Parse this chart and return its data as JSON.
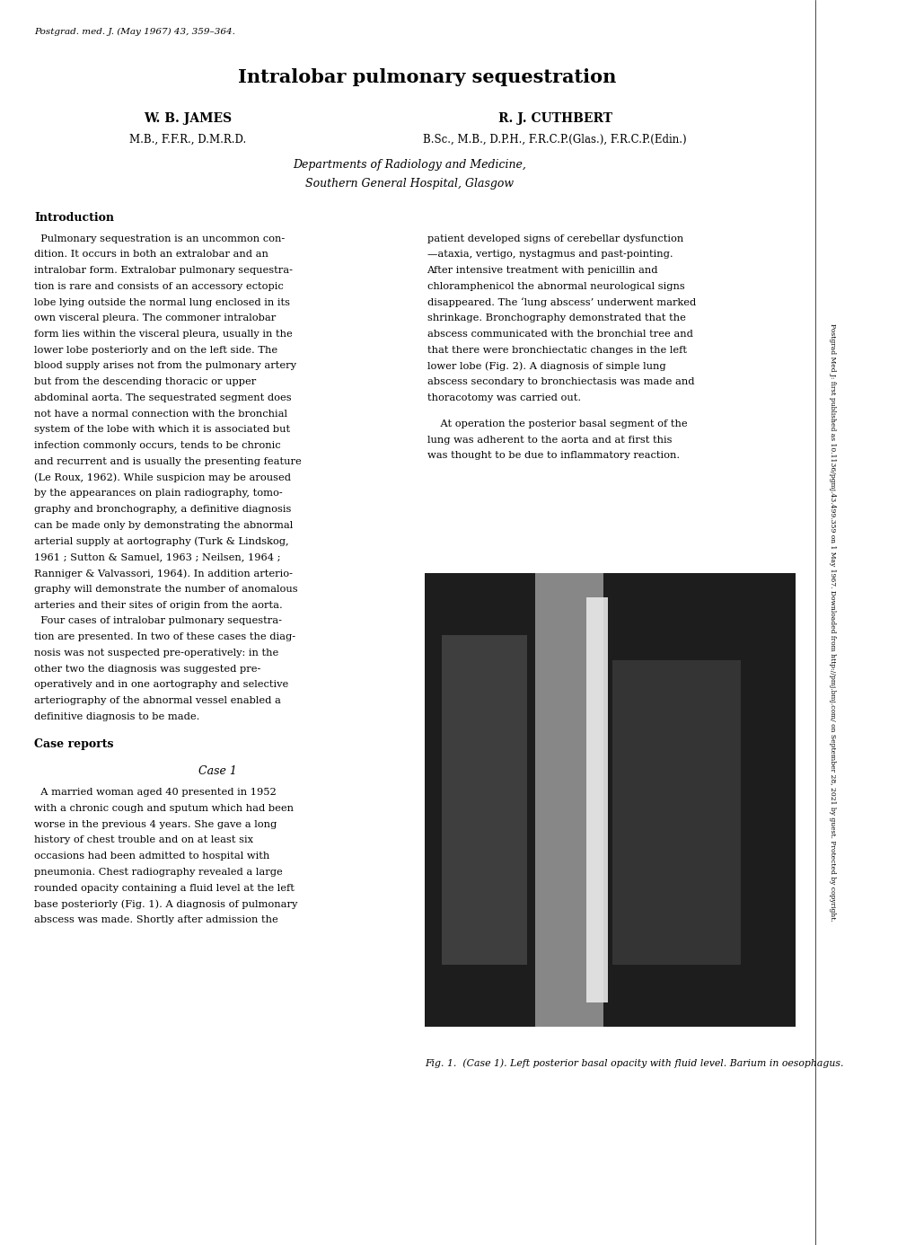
{
  "bg_color": "#ffffff",
  "page_width": 10.2,
  "page_height": 13.86,
  "header_citation": "Postgrad. med. J. (May 1967) 43, 359–364.",
  "title": "Intralobar pulmonary sequestration",
  "author1_name": "W. B. James",
  "author1_creds": "M.B., F.F.R., D.M.R.D.",
  "author2_name": "R. J. Cuthbert",
  "author2_creds": "B.Sc., M.B., D.P.H., F.R.C.P.(Glas.), F.R.C.P.(Edin.)",
  "dept_line1": "Departments of Radiology and Medicine,",
  "dept_line2": "Southern General Hospital, Glasgow",
  "intro_heading": "Introduction",
  "intro_text": "Pulmonary sequestration is an uncommon condition. It occurs in both an extralobar and an intralobar form. Extralobar pulmonary sequestration is rare and consists of an accessory ectopic lobe lying outside the normal lung enclosed in its own visceral pleura. The commoner intralobar form lies within the visceral pleura, usually in the lower lobe posteriorly and on the left side. The blood supply arises not from the pulmonary artery but from the descending thoracic or upper abdominal aorta. The sequestrated segment does not have a normal connection with the bronchial system of the lobe with which it is associated but infection commonly occurs, tends to be chronic and recurrent and is usually the presenting feature (Le Roux, 1962). While suspicion may be aroused by the appearances on plain radiography, tomography and bronchography, a definitive diagnosis can be made only by demonstrating the abnormal arterial supply at aortography (Turk & Lindskog, 1961 ; Sutton & Samuel, 1963 ; Neilsen, 1964 ; Ranniger & Valvassori, 1964). In addition arteriography will demonstrate the number of anomalous arteries and their sites of origin from the aorta.\n    Four cases of intralobar pulmonary sequestration are presented. In two of these cases the diagnosis was not suspected pre-operatively: in the other two the diagnosis was suggested pre-operatively and in one aortography and selective arteriography of the abnormal vessel enabled a definitive diagnosis to be made.",
  "case_reports_heading": "Case reports",
  "case1_heading": "Case 1",
  "case1_text": "A married woman aged 40 presented in 1952 with a chronic cough and sputum which had been worse in the previous 4 years. She gave a long history of chest trouble and on at least six occasions had been admitted to hospital with pneumonia. Chest radiography revealed a large rounded opacity containing a fluid level at the left base posteriorly (Fig. 1). A diagnosis of pulmonary abscess was made. Shortly after admission the",
  "right_col_text1": "patient developed signs of cerebellar dysfunction —ataxia, vertigo, nystagmus and past-pointing. After intensive treatment with penicillin and chloramphenicol the abnormal neurological signs disappeared. The ‘lung abscess’ underwent marked shrinkage. Bronchography demonstrated that the abscess communicated with the bronchial tree and that there were bronchiectatic changes in the left lower lobe (Fig. 2). A diagnosis of simple lung abscess secondary to bronchiectasis was made and thoracotomy was carried out.",
  "right_col_text2": "    At operation the posterior basal segment of the lung was adherent to the aorta and at first this was thought to be due to inflammatory reaction.",
  "fig1_caption": "Fig. 1.  (Case 1). Left posterior basal opacity with fluid level. Barium in oesophagus.",
  "side_text": "Postgrad Med J: first published as 10.1136/pgmj.43.499.359 on 1 May 1967. Downloaded from http://pmj.bmj.com/ on September 28, 2021 by guest. Protected by copyright.",
  "font_color": "#000000",
  "sidebar_color": "#000000"
}
